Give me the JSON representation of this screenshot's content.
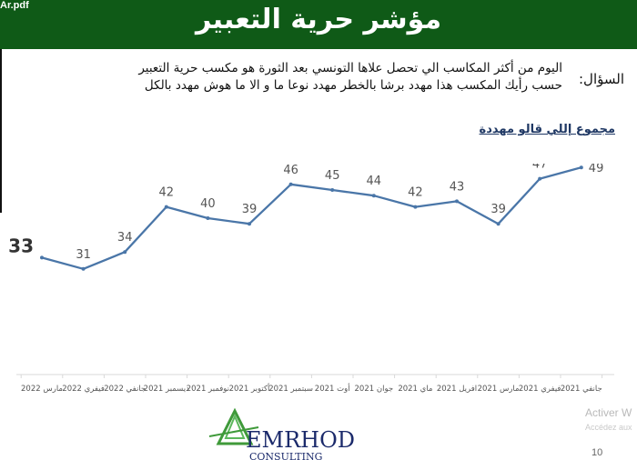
{
  "header": {
    "filename": "Ar.pdf",
    "title": "مؤشر حرية التعبير"
  },
  "question": {
    "label": "السؤال:",
    "line1": "اليوم من أكثر المكاسب الي تحصل علاها التونسي بعد الثورة هو مكسب حرية التعبير",
    "line2": "حسب رأيك المكسب هذا مهدد برشا بالخطر مهدد نوعا ما و الا ما هوش مهدد بالكل"
  },
  "chart_data": {
    "type": "line",
    "series": [
      {
        "name": "مجموع إللي قالو مهددة",
        "color": "#4a76a8",
        "values": [
          33,
          31,
          34,
          42,
          40,
          39,
          46,
          45,
          44,
          42,
          43,
          39,
          47,
          49
        ]
      }
    ],
    "categories": [
      "مارس 2022",
      "فيفري 2022",
      "جانفي 2022",
      "ديسمبر 2021",
      "نوفمبر 2021",
      "أكتوبر 2021",
      "سبتمبر 2021",
      "أوت 2021",
      "جوان 2021",
      "ماي 2021",
      "افريل 2021",
      "مارس 2021",
      "فيفري 2021",
      "جانفي 2021"
    ],
    "emphasized_point_index": 0,
    "ylim": [
      0,
      70
    ],
    "grid": false
  },
  "logo": {
    "text": "EMRHOD",
    "subtext": "CONSULTING"
  },
  "watermark": {
    "line1": "Activer W",
    "line2": "Accédez aux"
  },
  "page_number": "10"
}
